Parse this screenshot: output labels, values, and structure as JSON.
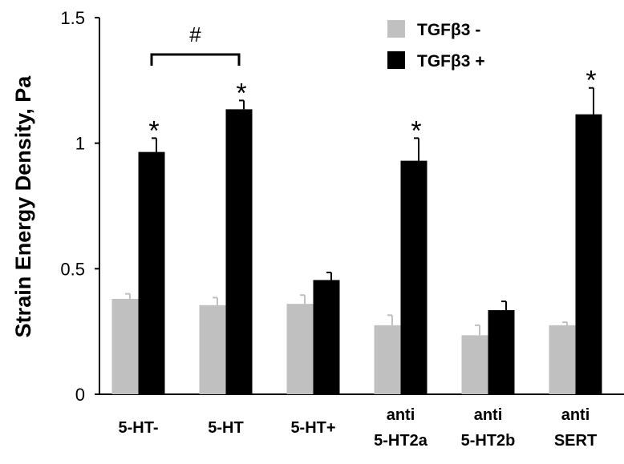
{
  "chart_data": {
    "type": "bar",
    "ylabel": "Strain Energy Density, Pa",
    "ylim": [
      0,
      1.5
    ],
    "yticks": [
      "0",
      "0.5",
      "1",
      "1.5"
    ],
    "categories": [
      [
        "5-HT-"
      ],
      [
        "5-HT"
      ],
      [
        "5-HT+"
      ],
      [
        "anti",
        "5-HT2a"
      ],
      [
        "anti",
        "5-HT2b"
      ],
      [
        "anti",
        "SERT"
      ]
    ],
    "series": [
      {
        "name": "TGFβ3 -",
        "color": "#c0c0c0",
        "values": [
          0.38,
          0.355,
          0.36,
          0.275,
          0.235,
          0.275
        ],
        "errors": [
          0.02,
          0.03,
          0.035,
          0.04,
          0.04,
          0.012
        ]
      },
      {
        "name": "TGFβ3 +",
        "color": "#000000",
        "values": [
          0.965,
          1.135,
          0.455,
          0.93,
          0.335,
          1.115
        ],
        "errors": [
          0.055,
          0.035,
          0.03,
          0.09,
          0.035,
          0.105
        ]
      }
    ],
    "significance_marks": [
      "*",
      "*",
      "",
      "*",
      "",
      "*"
    ],
    "bracket": {
      "from": 0,
      "to": 1,
      "label": "#"
    },
    "legend_position": "top-right"
  }
}
